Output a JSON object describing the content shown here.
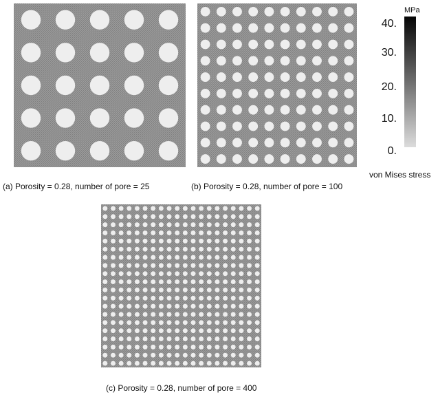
{
  "figure": {
    "panels": [
      {
        "id": "a",
        "caption": "(a) Porosity = 0.28, number of pore = 25",
        "pore_count": 25,
        "grid": 5,
        "porosity": 0.28
      },
      {
        "id": "b",
        "caption": "(b) Porosity = 0.28, number of pore = 100",
        "pore_count": 100,
        "grid": 10,
        "porosity": 0.28
      },
      {
        "id": "c",
        "caption": "(c) Porosity = 0.28, number of pore = 400",
        "pore_count": 400,
        "grid": 20,
        "porosity": 0.28
      }
    ],
    "colorbar": {
      "unit": "MPa",
      "title": "von Mises stress",
      "ticks": [
        "40.",
        "30.",
        "20.",
        "10.",
        "0."
      ],
      "min": 0,
      "max": 40
    },
    "colors": {
      "matrix": "#9c9c9c",
      "pore": "#eeeeee",
      "scale_high": "#050505",
      "scale_low": "#dcdcdc"
    }
  }
}
